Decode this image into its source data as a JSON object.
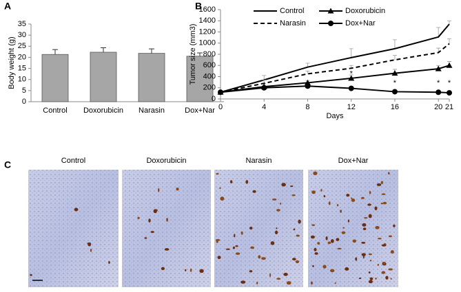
{
  "chart_data": [
    {
      "type": "bar",
      "panel_label": "A",
      "y_label": "Body weight (g)",
      "categories": [
        "Control",
        "Doxorubicin",
        "Narasin",
        "Dox+Nar"
      ],
      "values": [
        21.3,
        22.3,
        21.8,
        20.5
      ],
      "errors": [
        2.2,
        2.0,
        2.0,
        1.5
      ],
      "color": "#a6a6a6",
      "ylim": [
        0,
        35
      ],
      "yticks": [
        0,
        5,
        10,
        15,
        20,
        25,
        30,
        35
      ]
    },
    {
      "type": "line",
      "panel_label": "B",
      "x_label": "Days",
      "y_label": "Tumor size (mm3)",
      "x": [
        0,
        4,
        8,
        12,
        16,
        20,
        21
      ],
      "series": [
        {
          "name": "Control",
          "color": "#000000",
          "dash": false,
          "marker": "none",
          "values": [
            120,
            340,
            570,
            740,
            900,
            1110,
            1340
          ],
          "errors": [
            0,
            80,
            70,
            160,
            160,
            170,
            60
          ]
        },
        {
          "name": "Doxorubicin",
          "color": "#000000",
          "dash": false,
          "marker": "triangle",
          "values": [
            120,
            220,
            290,
            370,
            460,
            540,
            600
          ],
          "errors": [
            0,
            50,
            40,
            60,
            70,
            60,
            70
          ]
        },
        {
          "name": "Narasin",
          "color": "#000000",
          "dash": true,
          "marker": "none",
          "values": [
            120,
            280,
            450,
            550,
            700,
            830,
            990
          ],
          "errors": [
            0,
            60,
            50,
            50,
            80,
            80,
            90
          ]
        },
        {
          "name": "Dox+Nar",
          "color": "#000000",
          "dash": false,
          "marker": "circle",
          "values": [
            120,
            200,
            230,
            190,
            130,
            120,
            110
          ],
          "errors": [
            0,
            30,
            30,
            30,
            20,
            20,
            20
          ]
        }
      ],
      "annotations": [
        {
          "x": 12,
          "y": 450,
          "text": "*"
        },
        {
          "x": 16,
          "y": 280,
          "text": "*"
        },
        {
          "x": 20,
          "y": 280,
          "text": "*"
        },
        {
          "x": 21,
          "y": 280,
          "text": "*"
        }
      ],
      "xlim": [
        0,
        21
      ],
      "xticks": [
        0,
        4,
        8,
        12,
        16,
        20,
        21
      ],
      "ylim": [
        0,
        1600
      ],
      "yticks": [
        0,
        200,
        400,
        600,
        800,
        1000,
        1200,
        1400,
        1600
      ]
    }
  ],
  "panel_c": {
    "label": "C",
    "images": [
      {
        "title": "Control"
      },
      {
        "title": "Doxorubicin"
      },
      {
        "title": "Narasin"
      },
      {
        "title": "Dox+Nar"
      }
    ]
  }
}
